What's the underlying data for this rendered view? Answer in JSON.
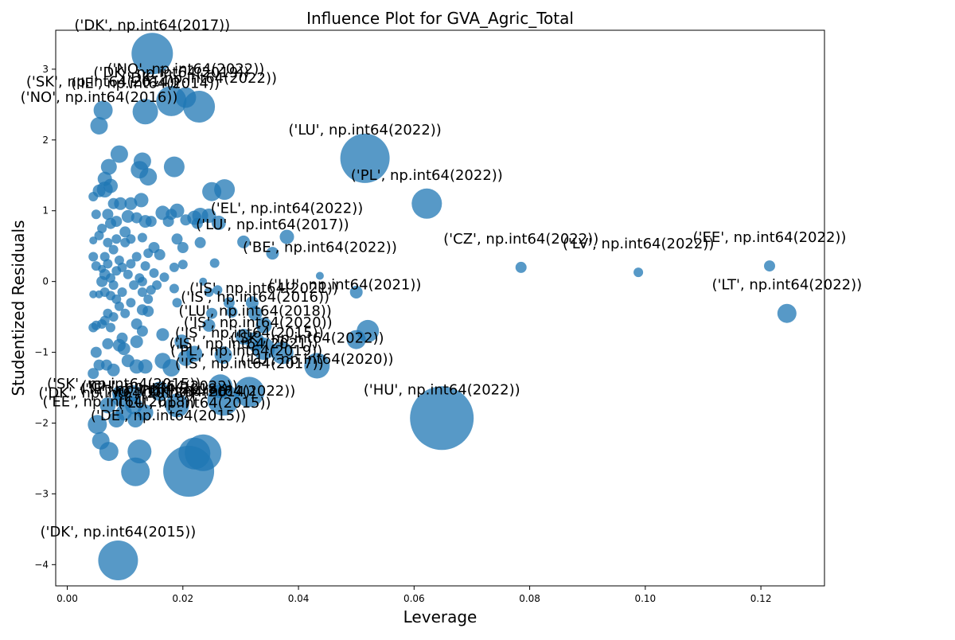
{
  "chart_data": {
    "type": "scatter",
    "title": "Influence Plot for GVA_Agric_Total",
    "xlabel": "Leverage",
    "ylabel": "Studentized Residuals",
    "xlim": [
      -0.002,
      0.131
    ],
    "ylim": [
      -4.3,
      3.55
    ],
    "xticks": [
      0.0,
      0.02,
      0.04,
      0.06,
      0.08,
      0.1,
      0.12
    ],
    "xtick_labels": [
      "0.00",
      "0.02",
      "0.04",
      "0.06",
      "0.08",
      "0.10",
      "0.12"
    ],
    "yticks": [
      -4,
      -3,
      -2,
      -1,
      0,
      1,
      2,
      3
    ],
    "ytick_labels": [
      "−4",
      "−3",
      "−2",
      "−1",
      "0",
      "1",
      "2",
      "3"
    ],
    "grid": false,
    "marker_color": "#1f77b4",
    "marker_opacity": 0.75,
    "size_encoding": "Cook's distance",
    "points": [
      [
        0.0147,
        3.22,
        26
      ],
      [
        0.0135,
        2.4,
        16
      ],
      [
        0.018,
        2.55,
        19
      ],
      [
        0.0228,
        2.47,
        20
      ],
      [
        0.0205,
        2.6,
        13
      ],
      [
        0.0062,
        2.42,
        12
      ],
      [
        0.0055,
        2.2,
        11
      ],
      [
        0.0515,
        1.74,
        31
      ],
      [
        0.0622,
        1.1,
        19
      ],
      [
        0.038,
        0.63,
        9
      ],
      [
        0.0355,
        0.4,
        8
      ],
      [
        0.0437,
        0.08,
        5
      ],
      [
        0.0785,
        0.2,
        7
      ],
      [
        0.0988,
        0.13,
        6
      ],
      [
        0.1215,
        0.22,
        7
      ],
      [
        0.1245,
        -0.45,
        12
      ],
      [
        0.05,
        -0.15,
        8
      ],
      [
        0.052,
        -0.7,
        14
      ],
      [
        0.05,
        -0.82,
        12
      ],
      [
        0.0432,
        -1.19,
        16
      ],
      [
        0.0372,
        -1.01,
        14
      ],
      [
        0.034,
        -0.95,
        14
      ],
      [
        0.0325,
        -0.85,
        12
      ],
      [
        0.032,
        -0.3,
        8
      ],
      [
        0.0325,
        -0.45,
        9
      ],
      [
        0.034,
        -0.62,
        10
      ],
      [
        0.0305,
        -0.78,
        10
      ],
      [
        0.0648,
        -1.93,
        40
      ],
      [
        0.0315,
        -1.56,
        19
      ],
      [
        0.027,
        -1.67,
        20
      ],
      [
        0.0265,
        -1.48,
        15
      ],
      [
        0.021,
        -2.68,
        32
      ],
      [
        0.022,
        -2.43,
        20
      ],
      [
        0.0235,
        -2.42,
        23
      ],
      [
        0.0118,
        -2.69,
        18
      ],
      [
        0.0125,
        -2.4,
        15
      ],
      [
        0.0088,
        -3.94,
        25
      ],
      [
        0.0072,
        -2.4,
        12
      ],
      [
        0.0058,
        -2.25,
        11
      ],
      [
        0.0052,
        -2.02,
        12
      ],
      [
        0.0085,
        -1.95,
        10
      ],
      [
        0.0118,
        -1.95,
        10
      ],
      [
        0.0098,
        -1.85,
        10
      ],
      [
        0.007,
        -1.75,
        10
      ],
      [
        0.0092,
        -1.65,
        10
      ],
      [
        0.0115,
        -1.75,
        11
      ],
      [
        0.0135,
        -1.85,
        10
      ],
      [
        0.0115,
        -1.58,
        10
      ],
      [
        0.009,
        -1.58,
        9
      ],
      [
        0.016,
        -1.55,
        12
      ],
      [
        0.019,
        -1.75,
        15
      ],
      [
        0.018,
        -1.22,
        11
      ],
      [
        0.0165,
        -1.12,
        10
      ],
      [
        0.0205,
        -1.08,
        10
      ],
      [
        0.022,
        -1.02,
        10
      ],
      [
        0.027,
        -1.04,
        11
      ],
      [
        0.0185,
        1.62,
        13
      ],
      [
        0.013,
        1.7,
        11
      ],
      [
        0.0125,
        1.58,
        11
      ],
      [
        0.014,
        1.48,
        11
      ],
      [
        0.009,
        1.8,
        11
      ],
      [
        0.0072,
        1.62,
        10
      ],
      [
        0.0272,
        1.3,
        13
      ],
      [
        0.025,
        1.27,
        12
      ],
      [
        0.0262,
        0.83,
        9
      ],
      [
        0.0305,
        0.56,
        8
      ],
      [
        0.023,
        0.93,
        10
      ],
      [
        0.0245,
        0.93,
        9
      ],
      [
        0.019,
        1.0,
        9
      ],
      [
        0.022,
        0.9,
        9
      ],
      [
        0.0165,
        0.97,
        9
      ],
      [
        0.0105,
        0.92,
        8
      ],
      [
        0.0128,
        1.15,
        9
      ],
      [
        0.011,
        1.1,
        8
      ],
      [
        0.0092,
        1.1,
        8
      ],
      [
        0.0065,
        1.45,
        9
      ],
      [
        0.0065,
        1.3,
        10
      ],
      [
        0.0075,
        1.35,
        9
      ],
      [
        0.0055,
        1.28,
        8
      ],
      [
        0.0045,
        1.2,
        6
      ],
      [
        0.005,
        0.95,
        6
      ],
      [
        0.0055,
        0.65,
        6
      ],
      [
        0.0045,
        0.58,
        5
      ],
      [
        0.0045,
        0.35,
        6
      ],
      [
        0.005,
        0.22,
        6
      ],
      [
        0.006,
        0.18,
        5
      ],
      [
        0.0055,
        -0.18,
        5
      ],
      [
        0.0045,
        -0.18,
        5
      ],
      [
        0.005,
        -0.62,
        6
      ],
      [
        0.0045,
        -0.65,
        6
      ],
      [
        0.005,
        -1.0,
        7
      ],
      [
        0.0045,
        -1.3,
        7
      ],
      [
        0.0055,
        -1.18,
        7
      ],
      [
        0.0068,
        -1.18,
        7
      ],
      [
        0.007,
        -0.88,
        7
      ],
      [
        0.008,
        -1.25,
        8
      ],
      [
        0.009,
        -0.9,
        8
      ],
      [
        0.0098,
        -0.95,
        8
      ],
      [
        0.0105,
        -1.12,
        8
      ],
      [
        0.012,
        -1.2,
        9
      ],
      [
        0.0135,
        -1.2,
        9
      ],
      [
        0.012,
        -0.85,
        8
      ],
      [
        0.0095,
        -0.8,
        7
      ],
      [
        0.013,
        -0.7,
        7
      ],
      [
        0.014,
        -0.42,
        7
      ],
      [
        0.013,
        -0.4,
        7
      ],
      [
        0.012,
        -0.6,
        7
      ],
      [
        0.0165,
        -0.75,
        8
      ],
      [
        0.0198,
        -0.85,
        9
      ],
      [
        0.0245,
        -0.62,
        8
      ],
      [
        0.025,
        -0.45,
        7
      ],
      [
        0.0245,
        -0.15,
        6
      ],
      [
        0.0255,
        0.26,
        6
      ],
      [
        0.0235,
        0.0,
        5
      ],
      [
        0.026,
        -0.12,
        6
      ],
      [
        0.028,
        -0.3,
        7
      ],
      [
        0.0285,
        -0.43,
        7
      ],
      [
        0.019,
        -0.3,
        6
      ],
      [
        0.0185,
        -0.1,
        6
      ],
      [
        0.0168,
        0.06,
        6
      ],
      [
        0.015,
        0.48,
        7
      ],
      [
        0.016,
        0.38,
        7
      ],
      [
        0.019,
        0.6,
        7
      ],
      [
        0.02,
        0.48,
        7
      ],
      [
        0.023,
        0.55,
        7
      ],
      [
        0.0225,
        0.82,
        7
      ],
      [
        0.0205,
        0.87,
        7
      ],
      [
        0.0185,
        0.2,
        6
      ],
      [
        0.02,
        0.24,
        6
      ],
      [
        0.015,
        0.12,
        6
      ],
      [
        0.014,
        0.4,
        6
      ],
      [
        0.013,
        0.62,
        6
      ],
      [
        0.011,
        0.6,
        6
      ],
      [
        0.01,
        0.55,
        6
      ],
      [
        0.0085,
        0.6,
        6
      ],
      [
        0.008,
        0.45,
        6
      ],
      [
        0.007,
        0.55,
        6
      ],
      [
        0.0065,
        0.35,
        6
      ],
      [
        0.007,
        0.25,
        6
      ],
      [
        0.0075,
        0.05,
        6
      ],
      [
        0.008,
        -0.05,
        6
      ],
      [
        0.0065,
        -0.15,
        6
      ],
      [
        0.0075,
        -0.2,
        6
      ],
      [
        0.0085,
        -0.25,
        6
      ],
      [
        0.009,
        -0.35,
        6
      ],
      [
        0.008,
        -0.5,
        6
      ],
      [
        0.007,
        -0.45,
        6
      ],
      [
        0.0065,
        -0.55,
        6
      ],
      [
        0.0075,
        -0.65,
        6
      ],
      [
        0.006,
        -0.6,
        6
      ],
      [
        0.0085,
        0.15,
        6
      ],
      [
        0.0095,
        0.2,
        6
      ],
      [
        0.0105,
        0.1,
        6
      ],
      [
        0.011,
        0.25,
        6
      ],
      [
        0.012,
        0.35,
        6
      ],
      [
        0.0125,
        0.05,
        6
      ],
      [
        0.0115,
        -0.05,
        6
      ],
      [
        0.013,
        -0.15,
        6
      ],
      [
        0.014,
        -0.25,
        6
      ],
      [
        0.0145,
        -0.12,
        6
      ],
      [
        0.0155,
        -0.05,
        6
      ],
      [
        0.0095,
        -0.15,
        6
      ],
      [
        0.01,
        -0.45,
        6
      ],
      [
        0.011,
        -0.3,
        6
      ],
      [
        0.0135,
        0.85,
        8
      ],
      [
        0.012,
        0.9,
        7
      ],
      [
        0.0085,
        0.85,
        7
      ],
      [
        0.0075,
        0.82,
        7
      ],
      [
        0.01,
        0.7,
        7
      ],
      [
        0.009,
        0.3,
        6
      ],
      [
        0.006,
        0.75,
        6
      ],
      [
        0.007,
        0.95,
        7
      ],
      [
        0.008,
        1.1,
        7
      ],
      [
        0.006,
        0.0,
        7
      ],
      [
        0.0065,
        0.1,
        7
      ],
      [
        0.0135,
        0.22,
        6
      ],
      [
        0.013,
        0.0,
        6
      ],
      [
        0.0145,
        0.85,
        7
      ],
      [
        0.0175,
        0.85,
        7
      ],
      [
        0.018,
        0.95,
        7
      ]
    ],
    "labels": [
      {
        "text": "('DK', np.int64(2017))",
        "x": 0.0147,
        "y": 3.22
      },
      {
        "text": "('NO', np.int64(2022))",
        "x": 0.0205,
        "y": 2.6
      },
      {
        "text": "('IE', np.int64(2014))",
        "x": 0.0135,
        "y": 2.4
      },
      {
        "text": "('DK', np.int64(2022))",
        "x": 0.0228,
        "y": 2.47
      },
      {
        "text": "('DK', np.int64(2019))",
        "x": 0.018,
        "y": 2.55
      },
      {
        "text": "('SK', np.int64(2014))",
        "x": 0.0062,
        "y": 2.42
      },
      {
        "text": "('NO', np.int64(2016))",
        "x": 0.0055,
        "y": 2.2
      },
      {
        "text": "('LU', np.int64(2022))",
        "x": 0.0515,
        "y": 1.74
      },
      {
        "text": "('PL', np.int64(2022))",
        "x": 0.0622,
        "y": 1.1
      },
      {
        "text": "('EL', np.int64(2022))",
        "x": 0.038,
        "y": 0.63
      },
      {
        "text": "('LU', np.int64(2017))",
        "x": 0.0355,
        "y": 0.4
      },
      {
        "text": "('BE', np.int64(2022))",
        "x": 0.0437,
        "y": 0.08
      },
      {
        "text": "('CZ', np.int64(2022))",
        "x": 0.0785,
        "y": 0.2
      },
      {
        "text": "('LV', np.int64(2022))",
        "x": 0.0988,
        "y": 0.13
      },
      {
        "text": "('EE', np.int64(2022))",
        "x": 0.1215,
        "y": 0.22
      },
      {
        "text": "('LT', np.int64(2022))",
        "x": 0.1245,
        "y": -0.45
      },
      {
        "text": "('IS', np.int64(2021))",
        "x": 0.034,
        "y": -0.5
      },
      {
        "text": "('LU', np.int64(2021))",
        "x": 0.048,
        "y": -0.45
      },
      {
        "text": "('IS', np.int64(2016))",
        "x": 0.0325,
        "y": -0.62
      },
      {
        "text": "('LU', np.int64(2018))",
        "x": 0.0325,
        "y": -0.82
      },
      {
        "text": "('IS', np.int64(2020))",
        "x": 0.033,
        "y": -0.98
      },
      {
        "text": "('IS', np.int64(2015))",
        "x": 0.0315,
        "y": -1.13
      },
      {
        "text": "('SK', np.int64(2022))",
        "x": 0.0415,
        "y": -1.2
      },
      {
        "text": "('IS', np.int64(2021))",
        "x": 0.0305,
        "y": -1.28
      },
      {
        "text": "('PL', np.int64(2019))",
        "x": 0.031,
        "y": -1.38
      },
      {
        "text": "('LU', np.int64(2020))",
        "x": 0.0432,
        "y": -1.5
      },
      {
        "text": "('IS', np.int64(2017))",
        "x": 0.0315,
        "y": -1.56
      },
      {
        "text": "('HU', np.int64(2022))",
        "x": 0.0648,
        "y": -1.93
      },
      {
        "text": "('SK', np.int64(2015))",
        "x": 0.0098,
        "y": -1.85
      },
      {
        "text": "('CH', np.int64(2022))",
        "x": 0.016,
        "y": -1.88
      },
      {
        "text": "('IE', np.int64(2018))",
        "x": 0.015,
        "y": -1.92
      },
      {
        "text": "('NO', np.int64(2014))",
        "x": 0.019,
        "y": -1.96
      },
      {
        "text": "('DK', np.int64(2022))",
        "x": 0.026,
        "y": -1.95
      },
      {
        "text": "('DK', np.int64(2018))",
        "x": 0.0085,
        "y": -1.98
      },
      {
        "text": "('EE', np.int64(2018))",
        "x": 0.009,
        "y": -2.1
      },
      {
        "text": "('LU', np.int64(2015))",
        "x": 0.022,
        "y": -2.12
      },
      {
        "text": "('DE', np.int64(2015))",
        "x": 0.0175,
        "y": -2.3
      },
      {
        "text": "('DK', np.int64(2015))",
        "x": 0.0088,
        "y": -3.94
      }
    ]
  }
}
